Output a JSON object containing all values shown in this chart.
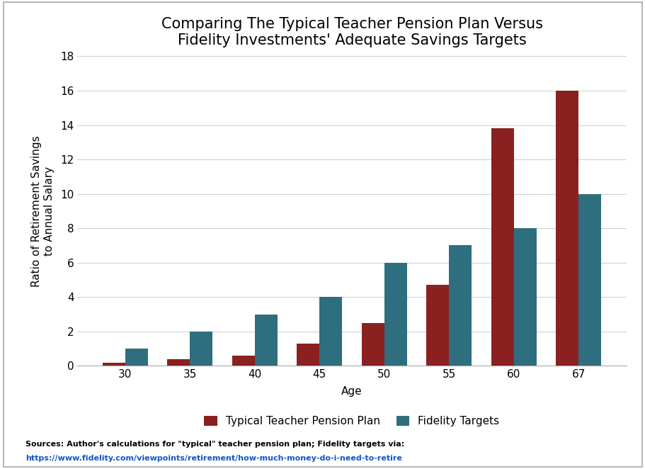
{
  "title": "Comparing The Typical Teacher Pension Plan Versus\nFidelity Investments' Adequate Savings Targets",
  "xlabel": "Age",
  "ylabel": "Ratio of Retirement Savings\nto Annual Salary",
  "ages": [
    30,
    35,
    40,
    45,
    50,
    55,
    60,
    67
  ],
  "teacher_values": [
    0.2,
    0.4,
    0.6,
    1.3,
    2.5,
    4.7,
    13.8,
    16.0
  ],
  "fidelity_values": [
    1.0,
    2.0,
    3.0,
    4.0,
    6.0,
    7.0,
    8.0,
    10.0
  ],
  "teacher_color": "#8B2020",
  "fidelity_color": "#2E6E7E",
  "ylim": [
    0,
    18
  ],
  "yticks": [
    0,
    2,
    4,
    6,
    8,
    10,
    12,
    14,
    16,
    18
  ],
  "legend_teacher": "Typical Teacher Pension Plan",
  "legend_fidelity": "Fidelity Targets",
  "source_line1": "Sources: Author's calculations for \"typical\" teacher pension plan; Fidelity targets via:",
  "source_line2": "https://www.fidelity.com/viewpoints/retirement/how-much-money-do-i-need-to-retire",
  "source_color1": "#000000",
  "source_color2": "#1155CC",
  "bar_width": 0.35,
  "background_color": "#FFFFFF",
  "title_fontsize": 15,
  "axis_label_fontsize": 11,
  "tick_fontsize": 11,
  "legend_fontsize": 11,
  "source_fontsize": 8,
  "border_color": "#AAAAAA"
}
